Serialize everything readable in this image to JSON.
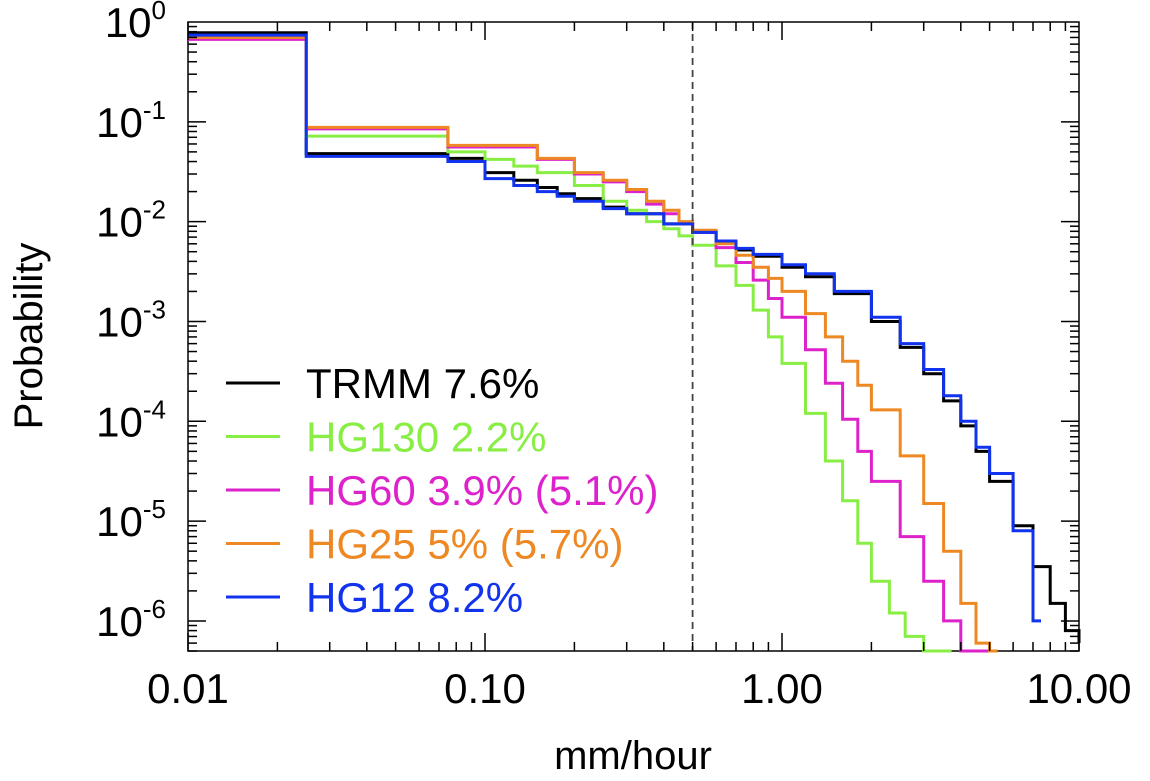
{
  "chart_data": {
    "type": "line",
    "title": "",
    "xlabel": "mm/hour",
    "ylabel": "Probability",
    "xscale": "log",
    "yscale": "log",
    "xlim": [
      0.01,
      10.0
    ],
    "ylim": [
      5e-07,
      1.0
    ],
    "grid": false,
    "legend_position": "bottom-left",
    "x_ticks": [
      {
        "value": 0.01,
        "label": "0.01"
      },
      {
        "value": 0.1,
        "label": "0.10"
      },
      {
        "value": 1.0,
        "label": "1.00"
      },
      {
        "value": 10.0,
        "label": "10.00"
      }
    ],
    "y_ticks": [
      {
        "value": 1,
        "base": "10",
        "exp": "0"
      },
      {
        "value": 0.1,
        "base": "10",
        "exp": "-1"
      },
      {
        "value": 0.01,
        "base": "10",
        "exp": "-2"
      },
      {
        "value": 0.001,
        "base": "10",
        "exp": "-3"
      },
      {
        "value": 0.0001,
        "base": "10",
        "exp": "-4"
      },
      {
        "value": 1e-05,
        "base": "10",
        "exp": "-5"
      },
      {
        "value": 1e-06,
        "base": "10",
        "exp": "-6"
      }
    ],
    "reference_line": {
      "x": 0.5,
      "style": "dashed",
      "color": "#444444"
    },
    "series": [
      {
        "name": "TRMM 7.6%",
        "color": "#000000",
        "x": [
          0.01,
          0.025,
          0.075,
          0.1,
          0.125,
          0.15,
          0.175,
          0.2,
          0.25,
          0.3,
          0.4,
          0.5,
          0.6,
          0.7,
          0.8,
          1.0,
          1.2,
          1.5,
          2.0,
          2.5,
          3.0,
          3.5,
          4.0,
          4.5,
          5.0,
          6.0,
          7.0,
          8.0,
          9.0,
          10.0
        ],
        "y": [
          0.78,
          0.048,
          0.043,
          0.031,
          0.026,
          0.022,
          0.019,
          0.017,
          0.014,
          0.012,
          0.0095,
          0.0078,
          0.0063,
          0.0052,
          0.0045,
          0.0035,
          0.0028,
          0.0019,
          0.001,
          0.00055,
          0.0003,
          0.00016,
          9e-05,
          5e-05,
          2.5e-05,
          9e-06,
          3.5e-06,
          1.5e-06,
          8e-07,
          6e-07
        ]
      },
      {
        "name": "HG130 2.2%",
        "color": "#88ee44",
        "x": [
          0.01,
          0.025,
          0.075,
          0.1,
          0.125,
          0.15,
          0.2,
          0.25,
          0.3,
          0.35,
          0.4,
          0.45,
          0.5,
          0.6,
          0.7,
          0.8,
          0.9,
          1.0,
          1.2,
          1.4,
          1.6,
          1.8,
          2.0,
          2.3,
          2.6,
          3.0,
          3.5
        ],
        "y": [
          0.72,
          0.072,
          0.05,
          0.042,
          0.036,
          0.031,
          0.023,
          0.016,
          0.013,
          0.01,
          0.0085,
          0.0072,
          0.0058,
          0.0036,
          0.0023,
          0.0013,
          0.0007,
          0.00038,
          0.00012,
          4e-05,
          1.6e-05,
          6e-06,
          2.5e-06,
          1.2e-06,
          7e-07,
          5e-07,
          5e-07
        ]
      },
      {
        "name": "HG60 3.9% (5.1%)",
        "color": "#dd22cc",
        "x": [
          0.01,
          0.025,
          0.075,
          0.15,
          0.2,
          0.25,
          0.3,
          0.35,
          0.4,
          0.45,
          0.5,
          0.6,
          0.7,
          0.8,
          0.9,
          1.0,
          1.2,
          1.4,
          1.6,
          1.8,
          2.0,
          2.5,
          3.0,
          3.5,
          4.0,
          5.0
        ],
        "y": [
          0.67,
          0.085,
          0.056,
          0.042,
          0.03,
          0.025,
          0.02,
          0.015,
          0.012,
          0.0095,
          0.0078,
          0.0055,
          0.0039,
          0.0026,
          0.0017,
          0.0011,
          0.00052,
          0.00024,
          0.000105,
          5e-05,
          2.5e-05,
          7e-06,
          2.5e-06,
          1e-06,
          5e-07,
          5e-07
        ]
      },
      {
        "name": "HG25 5% (5.7%)",
        "color": "#ee8822",
        "x": [
          0.01,
          0.025,
          0.075,
          0.15,
          0.2,
          0.25,
          0.3,
          0.35,
          0.4,
          0.45,
          0.5,
          0.6,
          0.7,
          0.8,
          0.9,
          1.0,
          1.2,
          1.4,
          1.6,
          1.8,
          2.0,
          2.5,
          3.0,
          3.5,
          4.0,
          4.5,
          5.0
        ],
        "y": [
          0.7,
          0.088,
          0.058,
          0.043,
          0.031,
          0.026,
          0.021,
          0.016,
          0.013,
          0.01,
          0.0082,
          0.006,
          0.0046,
          0.0035,
          0.0027,
          0.002,
          0.0012,
          0.0007,
          0.0004,
          0.00023,
          0.00013,
          4.5e-05,
          1.5e-05,
          5e-06,
          1.5e-06,
          6e-07,
          5e-07
        ]
      },
      {
        "name": "HG12 8.2%",
        "color": "#1133ee",
        "x": [
          0.01,
          0.025,
          0.075,
          0.1,
          0.125,
          0.15,
          0.175,
          0.2,
          0.25,
          0.3,
          0.4,
          0.5,
          0.6,
          0.7,
          0.8,
          1.0,
          1.2,
          1.5,
          2.0,
          2.5,
          3.0,
          3.5,
          4.0,
          4.5,
          5.0,
          6.0,
          7.0
        ],
        "y": [
          0.74,
          0.045,
          0.04,
          0.027,
          0.023,
          0.02,
          0.018,
          0.016,
          0.0135,
          0.012,
          0.0095,
          0.0078,
          0.0064,
          0.0054,
          0.0047,
          0.0037,
          0.003,
          0.002,
          0.0011,
          0.0006,
          0.00033,
          0.00018,
          0.0001,
          5.5e-05,
          3e-05,
          8e-06,
          1e-06
        ]
      }
    ]
  }
}
